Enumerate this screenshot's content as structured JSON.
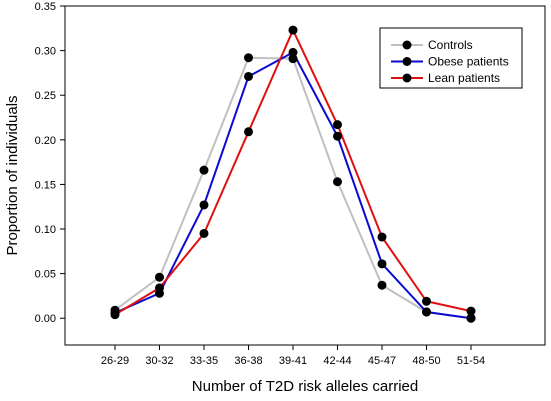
{
  "chart_data": {
    "type": "line",
    "categories": [
      "26-29",
      "30-32",
      "33-35",
      "36-38",
      "39-41",
      "42-44",
      "45-47",
      "48-50",
      "51-54"
    ],
    "series": [
      {
        "name": "Controls",
        "color": "#c0c0c0",
        "values": [
          0.009,
          0.046,
          0.166,
          0.292,
          0.291,
          0.153,
          0.037,
          0.007,
          0.0
        ]
      },
      {
        "name": "Obese patients",
        "color": "#0a0ad2",
        "values": [
          0.006,
          0.028,
          0.127,
          0.271,
          0.298,
          0.204,
          0.061,
          0.007,
          0.0
        ]
      },
      {
        "name": "Lean patients",
        "color": "#e01010",
        "values": [
          0.004,
          0.034,
          0.095,
          0.209,
          0.323,
          0.217,
          0.091,
          0.019,
          0.008
        ]
      }
    ],
    "marker_color": "#000000",
    "xlabel": "Number of T2D risk alleles carried",
    "ylabel": "Proportion of individuals",
    "ylim": [
      -0.03,
      0.35
    ],
    "yticks": [
      "0.00",
      "0.05",
      "0.10",
      "0.15",
      "0.20",
      "0.25",
      "0.30",
      "0.35"
    ],
    "legend_position": "top-right",
    "grid": false
  }
}
